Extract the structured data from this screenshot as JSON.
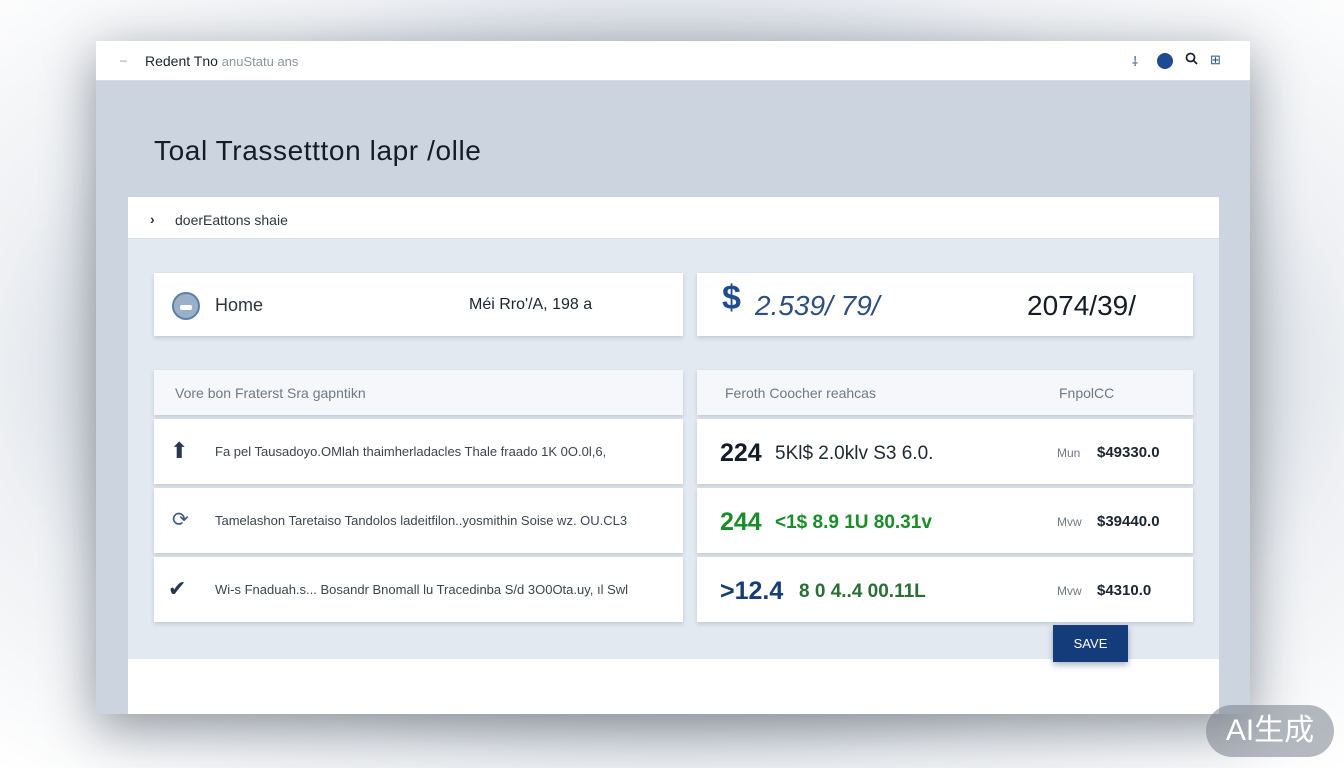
{
  "window": {
    "dash": "–",
    "title": "Redent Tno",
    "title_sub": "anuStatu ans",
    "icons": [
      "pin-icon",
      "avatar",
      "search-icon",
      "grid-icon"
    ],
    "pin_glyph": "⸸",
    "search_glyph": "🔍︎",
    "grid_glyph": "⊞"
  },
  "page_title": "Toal Trassettton lapr /olle",
  "breadcrumb": {
    "chevron": "›",
    "label": "doerEattons shaie"
  },
  "summary": {
    "home_label": "Home",
    "home_value": "Méi Rro'/A, 198 a",
    "amount_left": "2.539/ 79/",
    "amount_right": "2074/39/"
  },
  "left_table": {
    "header": "Vore bon Fraterst Sra gapntikn",
    "rows": [
      {
        "icon": "arrow-up-icon",
        "glyph": "⬆",
        "text": "Fa pel      Tausadoyo.OMlah   thaimherladacles Thale fraado 1K 0O.0l,6,"
      },
      {
        "icon": "refresh-icon",
        "glyph": "⟳",
        "text": "Tamelashon Taretaiso Tandolos ladeitfilon..yosmithin Soise wz. OU.CL3"
      },
      {
        "icon": "check-icon",
        "glyph": "✔",
        "text": "Wi-s  Fnaduah.s...  Bosandr Bnomall  lu  Tracedinba S/d 3O0Ota.uy, ıl Swl"
      }
    ]
  },
  "right_table": {
    "header_left": "Feroth Coocher reahcas",
    "header_right": "FnpolCC",
    "rows": [
      {
        "amount_a": "224",
        "amount_b": "5Kl$  2.0klv S3 6.0.",
        "unit": "Mun",
        "total": "$49330.0"
      },
      {
        "amount_a": "244",
        "amount_b": "<1$  8.9 1U  80.31v",
        "unit": "Mvw",
        "total": "$39440.0"
      },
      {
        "amount_a": ">12.4",
        "amount_b": "8  0 4..4  00.11L",
        "unit": "Mvw",
        "total": "$4310.0"
      }
    ]
  },
  "cta_label": "SAVE",
  "watermark": "AI生成"
}
